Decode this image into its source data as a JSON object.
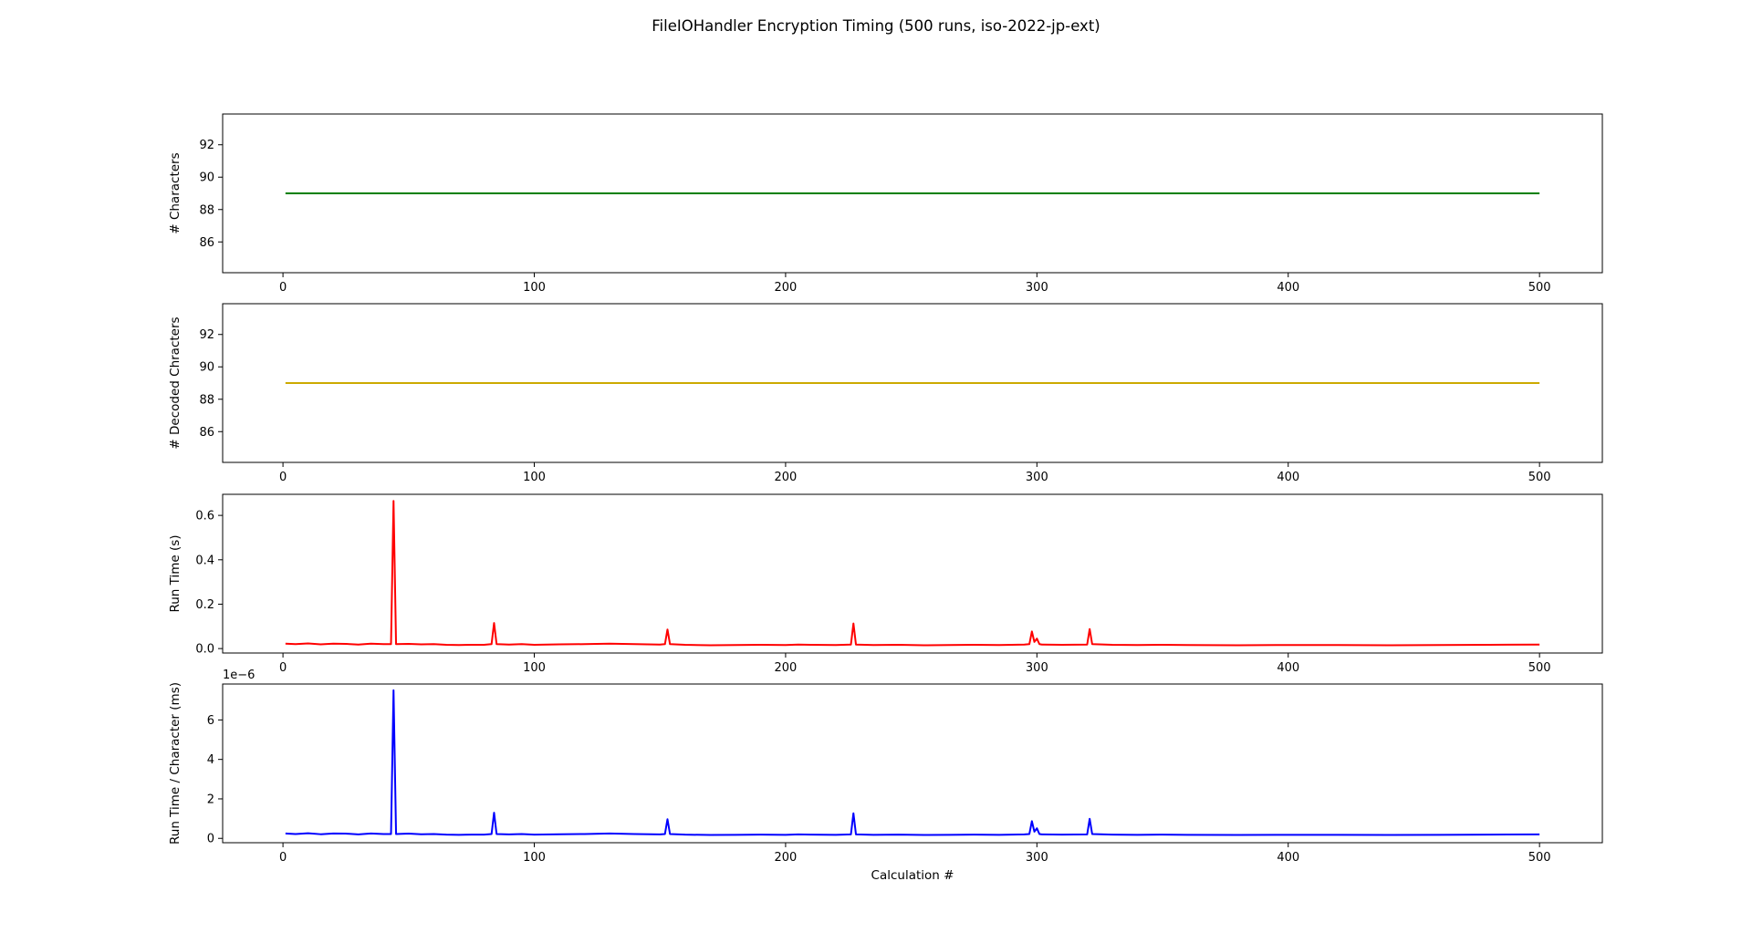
{
  "title": "FileIOHandler Encryption Timing (500 runs, iso-2022-jp-ext)",
  "chart_data": [
    {
      "type": "line",
      "ylabel": "# Characters",
      "xlabel": "",
      "color": "#008000",
      "xlim": [
        -24,
        525
      ],
      "ylim": [
        84.1,
        93.9
      ],
      "xticks": [
        0,
        100,
        200,
        300,
        400,
        500
      ],
      "yticks": [
        86,
        88,
        90,
        92
      ],
      "ytick_labels": [
        "86",
        "88",
        "90",
        "92"
      ],
      "offset_text": "",
      "grid": false,
      "series": [
        {
          "x": [
            1,
            500
          ],
          "y": [
            89,
            89
          ]
        }
      ]
    },
    {
      "type": "line",
      "ylabel": "# Decoded Chracters",
      "xlabel": "",
      "color": "#ccaa00",
      "xlim": [
        -24,
        525
      ],
      "ylim": [
        84.1,
        93.9
      ],
      "xticks": [
        0,
        100,
        200,
        300,
        400,
        500
      ],
      "yticks": [
        86,
        88,
        90,
        92
      ],
      "ytick_labels": [
        "86",
        "88",
        "90",
        "92"
      ],
      "offset_text": "",
      "grid": false,
      "series": [
        {
          "x": [
            1,
            500
          ],
          "y": [
            89,
            89
          ]
        }
      ]
    },
    {
      "type": "line",
      "ylabel": "Run Time (s)",
      "xlabel": "",
      "color": "#ff0000",
      "xlim": [
        -24,
        525
      ],
      "ylim": [
        -0.02,
        0.695
      ],
      "xticks": [
        0,
        100,
        200,
        300,
        400,
        500
      ],
      "yticks": [
        0.0,
        0.2,
        0.4,
        0.6
      ],
      "ytick_labels": [
        "0.0",
        "0.2",
        "0.4",
        "0.6"
      ],
      "offset_text": "",
      "grid": false,
      "series": [
        {
          "x": [
            1,
            5,
            10,
            15,
            20,
            25,
            30,
            35,
            40,
            43,
            44,
            45,
            50,
            55,
            60,
            65,
            70,
            75,
            80,
            83,
            84,
            85,
            90,
            95,
            100,
            110,
            120,
            130,
            140,
            150,
            152,
            153,
            154,
            160,
            170,
            180,
            190,
            200,
            205,
            210,
            220,
            226,
            227,
            228,
            235,
            245,
            255,
            265,
            275,
            285,
            295,
            297,
            298,
            299,
            300,
            301,
            302,
            310,
            320,
            321,
            322,
            330,
            340,
            350,
            360,
            380,
            400,
            420,
            440,
            460,
            480,
            500
          ],
          "y": [
            0.022,
            0.02,
            0.023,
            0.019,
            0.022,
            0.021,
            0.018,
            0.022,
            0.02,
            0.02,
            0.665,
            0.02,
            0.021,
            0.019,
            0.02,
            0.017,
            0.016,
            0.017,
            0.017,
            0.02,
            0.115,
            0.02,
            0.018,
            0.02,
            0.017,
            0.019,
            0.02,
            0.022,
            0.02,
            0.018,
            0.02,
            0.086,
            0.02,
            0.017,
            0.015,
            0.016,
            0.017,
            0.016,
            0.018,
            0.017,
            0.016,
            0.018,
            0.113,
            0.018,
            0.016,
            0.017,
            0.015,
            0.016,
            0.017,
            0.016,
            0.018,
            0.02,
            0.077,
            0.03,
            0.045,
            0.02,
            0.018,
            0.017,
            0.018,
            0.088,
            0.02,
            0.017,
            0.016,
            0.017,
            0.016,
            0.015,
            0.016,
            0.016,
            0.015,
            0.016,
            0.017,
            0.018
          ]
        }
      ]
    },
    {
      "type": "line",
      "ylabel": "Run Time / Character (ms)",
      "xlabel": "Calculation #",
      "color": "#0000ff",
      "xlim": [
        -24,
        525
      ],
      "ylim": [
        -0.22,
        7.82
      ],
      "xticks": [
        0,
        100,
        200,
        300,
        400,
        500
      ],
      "yticks": [
        0,
        2,
        4,
        6
      ],
      "ytick_labels": [
        "0",
        "2",
        "4",
        "6"
      ],
      "offset_text": "1e−6",
      "grid": false,
      "series": [
        {
          "x": [
            1,
            5,
            10,
            15,
            20,
            25,
            30,
            35,
            40,
            43,
            44,
            45,
            50,
            55,
            60,
            65,
            70,
            75,
            80,
            83,
            84,
            85,
            90,
            95,
            100,
            110,
            120,
            130,
            140,
            150,
            152,
            153,
            154,
            160,
            170,
            180,
            190,
            200,
            205,
            210,
            220,
            226,
            227,
            228,
            235,
            245,
            255,
            265,
            275,
            285,
            295,
            297,
            298,
            299,
            300,
            301,
            302,
            310,
            320,
            321,
            322,
            330,
            340,
            350,
            360,
            380,
            400,
            420,
            440,
            460,
            480,
            500
          ],
          "y": [
            0.25,
            0.22,
            0.26,
            0.21,
            0.25,
            0.24,
            0.2,
            0.25,
            0.22,
            0.22,
            7.5,
            0.22,
            0.24,
            0.21,
            0.22,
            0.19,
            0.18,
            0.19,
            0.19,
            0.22,
            1.3,
            0.22,
            0.2,
            0.22,
            0.19,
            0.21,
            0.22,
            0.25,
            0.22,
            0.2,
            0.22,
            0.97,
            0.22,
            0.19,
            0.17,
            0.18,
            0.19,
            0.18,
            0.2,
            0.19,
            0.18,
            0.2,
            1.27,
            0.2,
            0.18,
            0.19,
            0.17,
            0.18,
            0.19,
            0.18,
            0.2,
            0.22,
            0.87,
            0.34,
            0.51,
            0.22,
            0.2,
            0.19,
            0.2,
            0.99,
            0.22,
            0.19,
            0.18,
            0.19,
            0.18,
            0.17,
            0.18,
            0.18,
            0.17,
            0.18,
            0.19,
            0.2
          ]
        }
      ]
    }
  ]
}
